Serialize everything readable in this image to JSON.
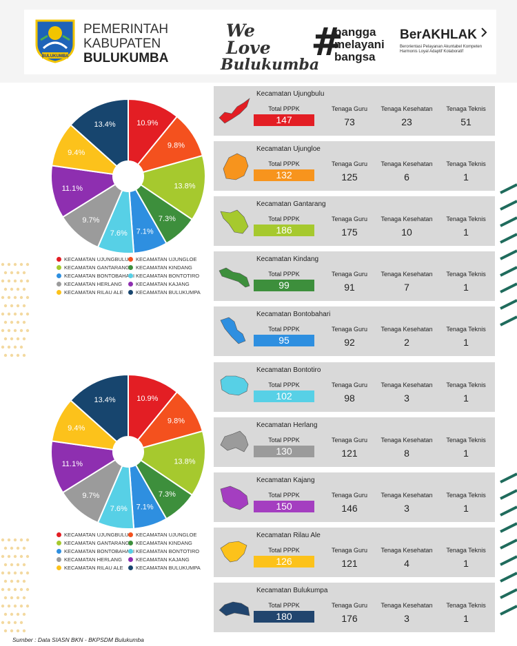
{
  "header": {
    "brand_line1": "PEMERINTAH",
    "brand_line2": "KABUPATEN",
    "brand_line3": "BULUKUMBA",
    "logo_text": "BULUKUMBA",
    "welove_line1": "We Love",
    "welove_line2": "Bulukumba",
    "bangga_line1": "bangga",
    "bangga_line2": "melayani",
    "bangga_line3": "bangsa",
    "berakhlak_title": "BerAKHLAK",
    "berakhlak_sub1": "Berorientasi Pelayanan Akuntabel Kompeten",
    "berakhlak_sub2": "Harmonis Loyal Adaptif Kolaboratif"
  },
  "labels": {
    "total": "Total PPPK",
    "guru": "Tenaga Guru",
    "kesehatan": "Tenaga Kesehatan",
    "teknis": "Tenaga Teknis"
  },
  "kecamatan": [
    {
      "name": "Kecamatan Ujungbulu",
      "total": 147,
      "guru": 73,
      "kesehatan": 23,
      "teknis": 51,
      "color": "#e31e24"
    },
    {
      "name": "Kecamatan Ujungloe",
      "total": 132,
      "guru": 125,
      "kesehatan": 6,
      "teknis": 1,
      "color": "#f7941d"
    },
    {
      "name": "Kecamatan Gantarang",
      "total": 186,
      "guru": 175,
      "kesehatan": 10,
      "teknis": 1,
      "color": "#a6c92e"
    },
    {
      "name": "Kecamatan Kindang",
      "total": 99,
      "guru": 91,
      "kesehatan": 7,
      "teknis": 1,
      "color": "#3d8f3c"
    },
    {
      "name": "Kecamatan Bontobahari",
      "total": 95,
      "guru": 92,
      "kesehatan": 2,
      "teknis": 1,
      "color": "#2e8fe0"
    },
    {
      "name": "Kecamatan Bontotiro",
      "total": 102,
      "guru": 98,
      "kesehatan": 3,
      "teknis": 1,
      "color": "#57d0e6"
    },
    {
      "name": "Kecamatan Herlang",
      "total": 130,
      "guru": 121,
      "kesehatan": 8,
      "teknis": 1,
      "color": "#9b9b9b"
    },
    {
      "name": "Kecamatan Kajang",
      "total": 150,
      "guru": 146,
      "kesehatan": 3,
      "teknis": 1,
      "color": "#a43ec0"
    },
    {
      "name": "Kecamatan Rilau Ale",
      "total": 126,
      "guru": 121,
      "kesehatan": 4,
      "teknis": 1,
      "color": "#fcc21b"
    },
    {
      "name": "Kecamatan Bulukumpa",
      "total": 180,
      "guru": 176,
      "kesehatan": 3,
      "teknis": 1,
      "color": "#21456e"
    }
  ],
  "chart_data": [
    {
      "type": "pie",
      "categories": [
        "KECAMATAN UJUNGBULU",
        "KECAMATAN UJUNGLOE",
        "KECAMATAN GANTARANG",
        "KECAMATAN KINDANG",
        "KECAMATAN BONTOBAHARI",
        "KECAMATAN BONTOTIRO",
        "KECAMATAN HERLANG",
        "KECAMATAN KAJANG",
        "KECAMATAN RILAU ALE",
        "KECAMATAN BULUKUMPA"
      ],
      "values": [
        10.9,
        9.8,
        13.8,
        7.3,
        7.1,
        7.6,
        9.7,
        11.1,
        9.4,
        13.4
      ],
      "labels": [
        "10.9%",
        "9.8%",
        "13.8%",
        "7.3%",
        "7.1%",
        "7.6%",
        "9.7%",
        "11.1%",
        "9.4%",
        "13.4%"
      ],
      "colors": [
        "#e31e24",
        "#f4511e",
        "#a6c92e",
        "#3d8f3c",
        "#2e8fe0",
        "#57d0e6",
        "#9b9b9b",
        "#8e2fb0",
        "#fcc21b",
        "#17456e"
      ],
      "legend": "bottom"
    },
    {
      "type": "pie",
      "categories": [
        "KECAMATAN UJUNGBULU",
        "KECAMATAN UJUNGLOE",
        "KECAMATAN GANTARANG",
        "KECAMATAN KINDANG",
        "KECAMATAN BONTOBAHARI",
        "KECAMATAN BONTOTIRO",
        "KECAMATAN HERLANG",
        "KECAMATAN KAJANG",
        "KECAMATAN RILAU ALE",
        "KECAMATAN BULUKUMPA"
      ],
      "values": [
        10.9,
        9.8,
        13.8,
        7.3,
        7.1,
        7.6,
        9.7,
        11.1,
        9.4,
        13.4
      ],
      "labels": [
        "10.9%",
        "9.8%",
        "13.8%",
        "7.3%",
        "7.1%",
        "7.6%",
        "9.7%",
        "11.1%",
        "9.4%",
        "13.4%"
      ],
      "colors": [
        "#e31e24",
        "#f4511e",
        "#a6c92e",
        "#3d8f3c",
        "#2e8fe0",
        "#57d0e6",
        "#9b9b9b",
        "#8e2fb0",
        "#fcc21b",
        "#17456e"
      ],
      "legend": "bottom"
    }
  ],
  "footer": {
    "source": "Sumber : Data SIASN BKN - BKPSDM Bulukumba"
  }
}
